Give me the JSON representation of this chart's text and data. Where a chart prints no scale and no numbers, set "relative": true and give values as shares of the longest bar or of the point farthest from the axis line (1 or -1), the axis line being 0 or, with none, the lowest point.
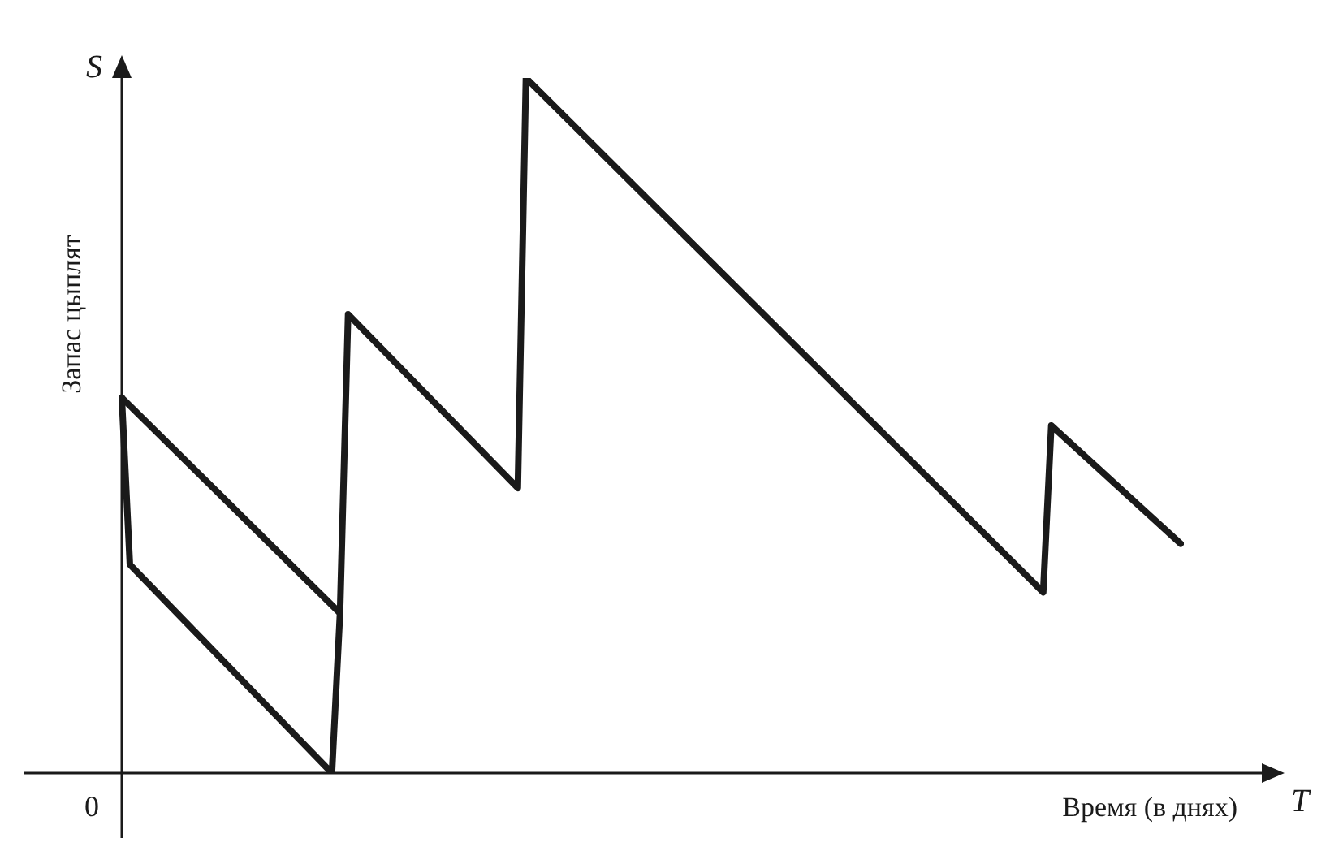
{
  "chart_data": {
    "type": "line",
    "relative": true,
    "xlabel": "Время (в днях)",
    "ylabel": "Запас цыплят",
    "annotations": [
      "S",
      "T",
      "0"
    ],
    "grid": false,
    "legend": false,
    "marker": "none",
    "line_style": "solid",
    "categories": [
      null,
      null,
      null,
      null,
      null,
      null,
      null,
      null,
      null,
      null,
      null,
      null,
      null,
      null,
      null,
      null,
      null,
      null,
      null,
      null,
      null,
      null,
      null,
      null,
      null,
      null,
      null,
      null,
      null,
      null,
      null,
      null,
      null,
      null,
      null,
      null,
      null,
      null,
      null,
      null,
      null,
      null,
      null,
      null,
      null,
      null,
      null,
      null,
      null,
      null,
      null,
      null,
      null,
      null,
      null,
      null,
      null,
      null,
      null,
      null,
      null,
      null,
      null,
      null,
      null,
      null,
      null,
      null,
      null,
      null,
      null,
      null,
      null,
      null,
      null,
      null,
      null,
      null,
      null,
      null,
      null,
      null,
      null,
      null,
      null,
      null,
      null,
      null,
      null,
      null,
      null,
      null,
      null,
      null,
      null,
      null,
      null,
      null,
      null,
      null,
      null,
      null,
      null,
      null,
      null,
      null,
      null,
      null,
      null,
      null,
      null,
      null,
      null,
      null,
      null,
      null,
      null,
      null,
      null,
      null,
      null,
      null,
      null,
      null,
      null,
      null,
      null,
      null,
      null,
      null,
      null,
      null
    ],
    "series": [
      {
        "color": "#1a1a1a",
        "values": [
          0.54,
          null,
          null,
          null,
          null,
          null,
          null,
          null,
          null,
          null,
          null,
          null,
          null,
          null,
          null,
          null,
          null,
          null,
          null,
          null,
          null,
          null,
          null,
          null,
          null,
          null,
          null,
          0.23,
          0.66,
          null,
          null,
          null,
          null,
          null,
          null,
          null,
          null,
          null,
          null,
          null,
          null,
          null,
          null,
          null,
          null,
          null,
          null,
          null,
          null,
          0.41,
          1.0,
          null,
          null,
          null,
          null,
          null,
          null,
          null,
          null,
          null,
          null,
          null,
          null,
          null,
          null,
          null,
          null,
          null,
          null,
          null,
          null,
          null,
          null,
          null,
          null,
          null,
          null,
          null,
          null,
          null,
          null,
          null,
          null,
          null,
          null,
          null,
          null,
          null,
          null,
          null,
          null,
          null,
          null,
          null,
          null,
          null,
          null,
          null,
          null,
          null,
          null,
          null,
          null,
          null,
          null,
          null,
          null,
          null,
          null,
          null,
          null,
          null,
          null,
          null,
          0.26,
          0.5,
          null,
          null,
          null,
          null,
          null,
          null,
          null,
          null,
          null,
          null,
          null,
          null,
          null,
          null,
          null,
          0.33
        ]
      },
      {
        "color": "#1a1a1a",
        "values": [
          0.54,
          0.3,
          null,
          null,
          null,
          null,
          null,
          null,
          null,
          null,
          null,
          null,
          null,
          null,
          null,
          null,
          null,
          null,
          null,
          null,
          null,
          null,
          null,
          null,
          null,
          null,
          0,
          0.23,
          null,
          null,
          null,
          null,
          null,
          null,
          null,
          null,
          null,
          null,
          null,
          null,
          null,
          null,
          null,
          null,
          null,
          null,
          null,
          null,
          null,
          null,
          null,
          null,
          null,
          null,
          null,
          null,
          null,
          null,
          null,
          null,
          null,
          null,
          null,
          null,
          null,
          null,
          null,
          null,
          null,
          null,
          null,
          null,
          null,
          null,
          null,
          null,
          null,
          null,
          null,
          null,
          null,
          null,
          null,
          null,
          null,
          null,
          null,
          null,
          null,
          null,
          null,
          null,
          null,
          null,
          null,
          null,
          null,
          null,
          null,
          null,
          null,
          null,
          null,
          null,
          null,
          null,
          null,
          null,
          null,
          null,
          null,
          null,
          null,
          null,
          null,
          null,
          null,
          null,
          null,
          null,
          null,
          null,
          null,
          null,
          null,
          null,
          null,
          null,
          null,
          null,
          null,
          null
        ]
      }
    ]
  }
}
